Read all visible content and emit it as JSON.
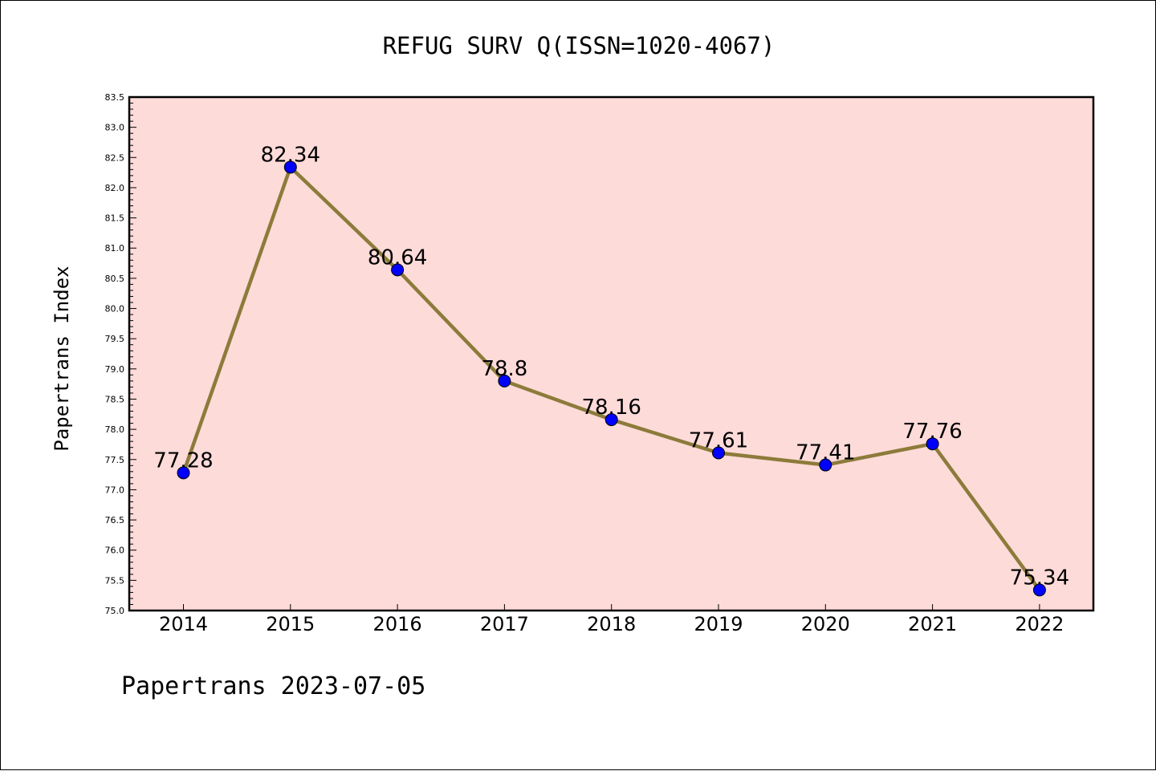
{
  "chart_data": {
    "type": "line",
    "title": "REFUG SURV Q(ISSN=1020-4067)",
    "ylabel": "Papertrans Index",
    "xlabel": "",
    "x": [
      "2014",
      "2015",
      "2016",
      "2017",
      "2018",
      "2019",
      "2020",
      "2021",
      "2022"
    ],
    "values": [
      77.28,
      82.34,
      80.64,
      78.8,
      78.16,
      77.61,
      77.41,
      77.76,
      75.34
    ],
    "data_labels": [
      "77.28",
      "82.34",
      "80.64",
      "78.8",
      "78.16",
      "77.61",
      "77.41",
      "77.76",
      "75.34"
    ],
    "ylim": [
      75.0,
      83.5
    ],
    "yticks": [
      "75.0",
      "75.5",
      "76.0",
      "76.5",
      "77.0",
      "77.5",
      "78.0",
      "78.5",
      "79.0",
      "79.5",
      "80.0",
      "80.5",
      "81.0",
      "81.5",
      "82.0",
      "82.5",
      "83.0",
      "83.5"
    ],
    "grid": false,
    "legend": "none",
    "colors": {
      "plot_background": "#fddbd9",
      "line": "#8c7b3a",
      "marker": "#0000ff"
    }
  },
  "footer": "Papertrans 2023-07-05"
}
